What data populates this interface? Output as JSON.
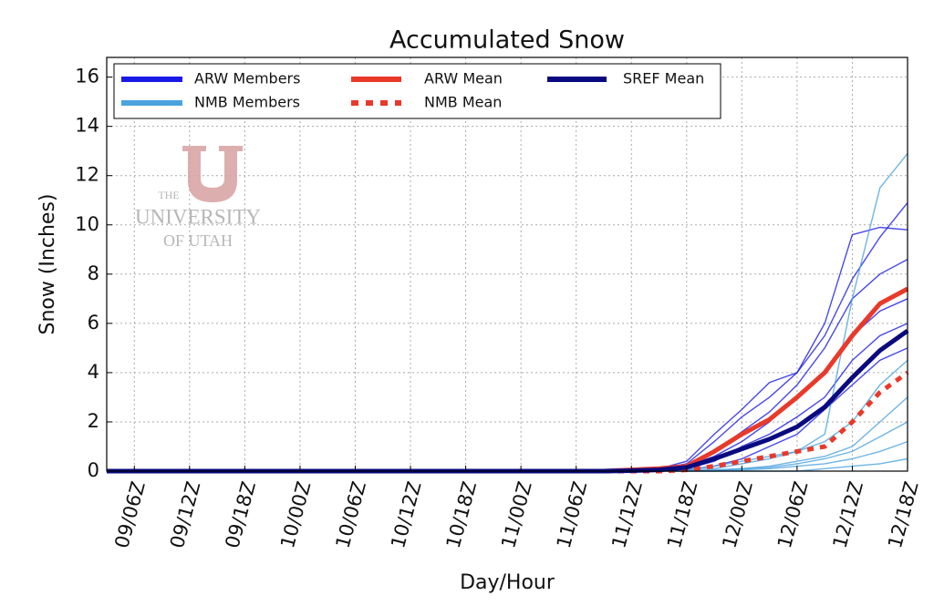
{
  "chart_data": {
    "type": "line",
    "title": "Accumulated Snow",
    "x_label": "Day/Hour",
    "y_label": "Snow (Inches)",
    "watermark": {
      "line1": "THE",
      "line2": "UNIVERSITY",
      "line3": "OF UTAH"
    },
    "categories": [
      null,
      "09/06Z",
      null,
      "09/12Z",
      null,
      "09/18Z",
      null,
      "10/00Z",
      null,
      "10/06Z",
      null,
      "10/12Z",
      null,
      "10/18Z",
      null,
      "11/00Z",
      null,
      "11/06Z",
      null,
      "11/12Z",
      null,
      "11/18Z",
      null,
      "12/00Z",
      null,
      "12/06Z",
      null,
      "12/12Z",
      null,
      "12/18Z"
    ],
    "ylim": [
      0,
      16.8
    ],
    "yticks": [
      0,
      2,
      4,
      6,
      8,
      10,
      12,
      14,
      16
    ],
    "grid": true,
    "legend": "upper left",
    "series": [
      {
        "name": "ARW Members",
        "color": "#1a1ae6",
        "members": [
          [
            0,
            0,
            0,
            0,
            0,
            0,
            0,
            0,
            0,
            0,
            0,
            0,
            0,
            0,
            0,
            0,
            0,
            0,
            0,
            0,
            0.1,
            0.4,
            1.5,
            2.5,
            3.6,
            4.0,
            5.5,
            7.8,
            9.5,
            10.9
          ],
          [
            0,
            0,
            0,
            0,
            0,
            0,
            0,
            0,
            0,
            0,
            0,
            0,
            0,
            0,
            0,
            0,
            0,
            0,
            0,
            0,
            0.1,
            0.3,
            1.2,
            2.2,
            3.0,
            4.0,
            6.0,
            9.6,
            9.9,
            9.8
          ],
          [
            0,
            0,
            0,
            0,
            0,
            0,
            0,
            0,
            0,
            0,
            0,
            0,
            0,
            0,
            0,
            0,
            0,
            0,
            0,
            0,
            0.05,
            0.2,
            0.8,
            1.6,
            2.4,
            3.5,
            5.0,
            7.0,
            8.0,
            8.6
          ],
          [
            0,
            0,
            0,
            0,
            0,
            0,
            0,
            0,
            0,
            0,
            0,
            0,
            0,
            0,
            0,
            0,
            0,
            0,
            0,
            0,
            0.05,
            0.2,
            0.6,
            1.2,
            2.0,
            3.0,
            4.0,
            5.5,
            6.5,
            7.0
          ],
          [
            0,
            0,
            0,
            0,
            0,
            0,
            0,
            0,
            0,
            0,
            0,
            0,
            0,
            0,
            0,
            0,
            0,
            0,
            0,
            0,
            0,
            0.1,
            0.4,
            1.0,
            1.5,
            2.2,
            3.0,
            4.5,
            5.5,
            6.0
          ],
          [
            0,
            0,
            0,
            0,
            0,
            0,
            0,
            0,
            0,
            0,
            0,
            0,
            0,
            0,
            0,
            0,
            0,
            0,
            0,
            0,
            0,
            0.05,
            0.2,
            0.5,
            1.0,
            1.5,
            2.5,
            3.5,
            4.5,
            5.0
          ]
        ]
      },
      {
        "name": "NMB Members",
        "color": "#4aa3df",
        "members": [
          [
            0,
            0,
            0,
            0,
            0,
            0,
            0,
            0,
            0,
            0,
            0,
            0,
            0,
            0,
            0,
            0,
            0,
            0,
            0,
            0,
            0,
            0.05,
            0.2,
            0.4,
            0.6,
            0.8,
            1.5,
            7.0,
            11.5,
            12.9
          ],
          [
            0,
            0,
            0,
            0,
            0,
            0,
            0,
            0,
            0,
            0,
            0,
            0,
            0,
            0,
            0,
            0,
            0,
            0,
            0,
            0,
            0,
            0.02,
            0.1,
            0.3,
            0.5,
            0.8,
            1.2,
            2.0,
            3.5,
            4.5
          ],
          [
            0,
            0,
            0,
            0,
            0,
            0,
            0,
            0,
            0,
            0,
            0,
            0,
            0,
            0,
            0,
            0,
            0,
            0,
            0,
            0,
            0,
            0,
            0.05,
            0.1,
            0.2,
            0.4,
            0.6,
            1.0,
            2.0,
            3.0
          ],
          [
            0,
            0,
            0,
            0,
            0,
            0,
            0,
            0,
            0,
            0,
            0,
            0,
            0,
            0,
            0,
            0,
            0,
            0,
            0,
            0,
            0,
            0,
            0.02,
            0.1,
            0.15,
            0.3,
            0.5,
            0.8,
            1.4,
            2.0
          ],
          [
            0,
            0,
            0,
            0,
            0,
            0,
            0,
            0,
            0,
            0,
            0,
            0,
            0,
            0,
            0,
            0,
            0,
            0,
            0,
            0,
            0,
            0,
            0,
            0.05,
            0.1,
            0.2,
            0.3,
            0.5,
            0.8,
            1.2
          ],
          [
            0,
            0,
            0,
            0,
            0,
            0,
            0,
            0,
            0,
            0,
            0,
            0,
            0,
            0,
            0,
            0,
            0,
            0,
            0,
            0,
            0,
            0,
            0,
            0,
            0,
            0,
            0.1,
            0.2,
            0.3,
            0.5
          ]
        ]
      },
      {
        "name": "ARW Mean",
        "color": "#e8392a",
        "dash": false,
        "values": [
          0,
          0,
          0,
          0,
          0,
          0,
          0,
          0,
          0,
          0,
          0,
          0,
          0,
          0,
          0,
          0,
          0,
          0,
          0,
          0.05,
          0.1,
          0.2,
          0.8,
          1.5,
          2.1,
          3.0,
          4.0,
          5.5,
          6.8,
          7.4
        ]
      },
      {
        "name": "NMB Mean",
        "color": "#e8392a",
        "dash": true,
        "values": [
          0,
          0,
          0,
          0,
          0,
          0,
          0,
          0,
          0,
          0,
          0,
          0,
          0,
          0,
          0,
          0,
          0,
          0,
          0,
          0,
          0,
          0.05,
          0.2,
          0.4,
          0.6,
          0.8,
          1.0,
          2.0,
          3.2,
          4.0
        ]
      },
      {
        "name": "SREF Mean",
        "color": "#0a0a80",
        "dash": false,
        "values": [
          0,
          0,
          0,
          0,
          0,
          0,
          0,
          0,
          0,
          0,
          0,
          0,
          0,
          0,
          0,
          0,
          0,
          0,
          0,
          0.02,
          0.05,
          0.15,
          0.5,
          0.9,
          1.3,
          1.8,
          2.6,
          3.8,
          4.9,
          5.7
        ]
      }
    ]
  }
}
